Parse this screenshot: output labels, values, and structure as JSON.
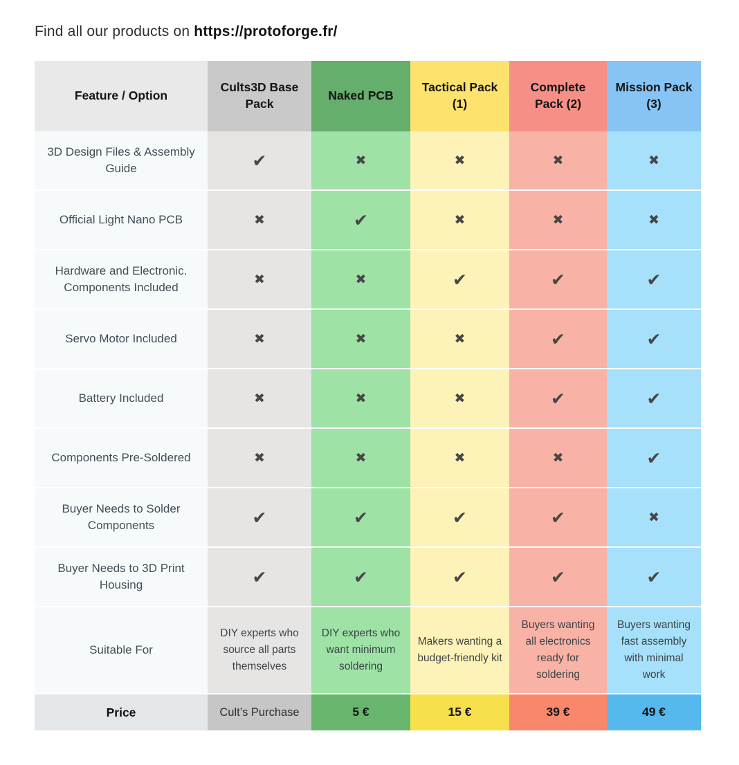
{
  "intro": {
    "prefix": "Find all our products on ",
    "url": "https://protoforge.fr/"
  },
  "table": {
    "feature_header": "Feature / Option",
    "feature_col": {
      "header_bg": "#e9e9e9",
      "body_bg": "#f7fafb",
      "price_bg": "#e3e7e9"
    },
    "columns": [
      {
        "label": "Cults3D Base Pack",
        "header_bg": "#c9c9c9",
        "body_bg": "#e6e5e4",
        "price_bg": "#c6c6c6"
      },
      {
        "label": "Naked PCB",
        "header_bg": "#65ae6b",
        "body_bg": "#9ee2a6",
        "price_bg": "#68b66e"
      },
      {
        "label": "Tactical Pack (1)",
        "header_bg": "#fde26e",
        "body_bg": "#fdf2b7",
        "price_bg": "#f8e04c"
      },
      {
        "label": "Complete Pack (2)",
        "header_bg": "#f69086",
        "body_bg": "#f9b2a6",
        "price_bg": "#f8876b"
      },
      {
        "label": "Mission Pack (3)",
        "header_bg": "#85c4f4",
        "body_bg": "#a6e0fa",
        "price_bg": "#55b9ee"
      }
    ],
    "rows": [
      {
        "feature": "3D Design Files & Assembly Guide",
        "marks": [
          "check",
          "cross",
          "cross",
          "cross",
          "cross"
        ]
      },
      {
        "feature": "Official Light Nano PCB",
        "marks": [
          "cross",
          "check",
          "cross",
          "cross",
          "cross"
        ]
      },
      {
        "feature": "Hardware and Electronic. Components Included",
        "marks": [
          "cross",
          "cross",
          "check",
          "check",
          "check"
        ]
      },
      {
        "feature": "Servo Motor Included",
        "marks": [
          "cross",
          "cross",
          "cross",
          "check",
          "check"
        ]
      },
      {
        "feature": "Battery Included",
        "marks": [
          "cross",
          "cross",
          "cross",
          "check",
          "check"
        ]
      },
      {
        "feature": "Components Pre-Soldered",
        "marks": [
          "cross",
          "cross",
          "cross",
          "cross",
          "check"
        ]
      },
      {
        "feature": "Buyer Needs to Solder Components",
        "marks": [
          "check",
          "check",
          "check",
          "check",
          "cross"
        ]
      },
      {
        "feature": "Buyer Needs to 3D Print Housing",
        "marks": [
          "check",
          "check",
          "check",
          "check",
          "check"
        ]
      },
      {
        "feature": "Suitable For",
        "texts": [
          "DIY experts who source all parts themselves",
          "DIY experts who want minimum soldering",
          "Makers wanting a budget-friendly kit",
          "Buyers wanting all electronics ready for soldering",
          "Buyers wanting fast assembly with minimal work"
        ]
      }
    ],
    "price_row": {
      "label": "Price",
      "values": [
        "Cult’s Purchase",
        "5 €",
        "15 €",
        "39 €",
        "49 €"
      ]
    },
    "glyphs": {
      "check": "✔",
      "cross": "✖"
    },
    "mark_color": "#474747"
  }
}
